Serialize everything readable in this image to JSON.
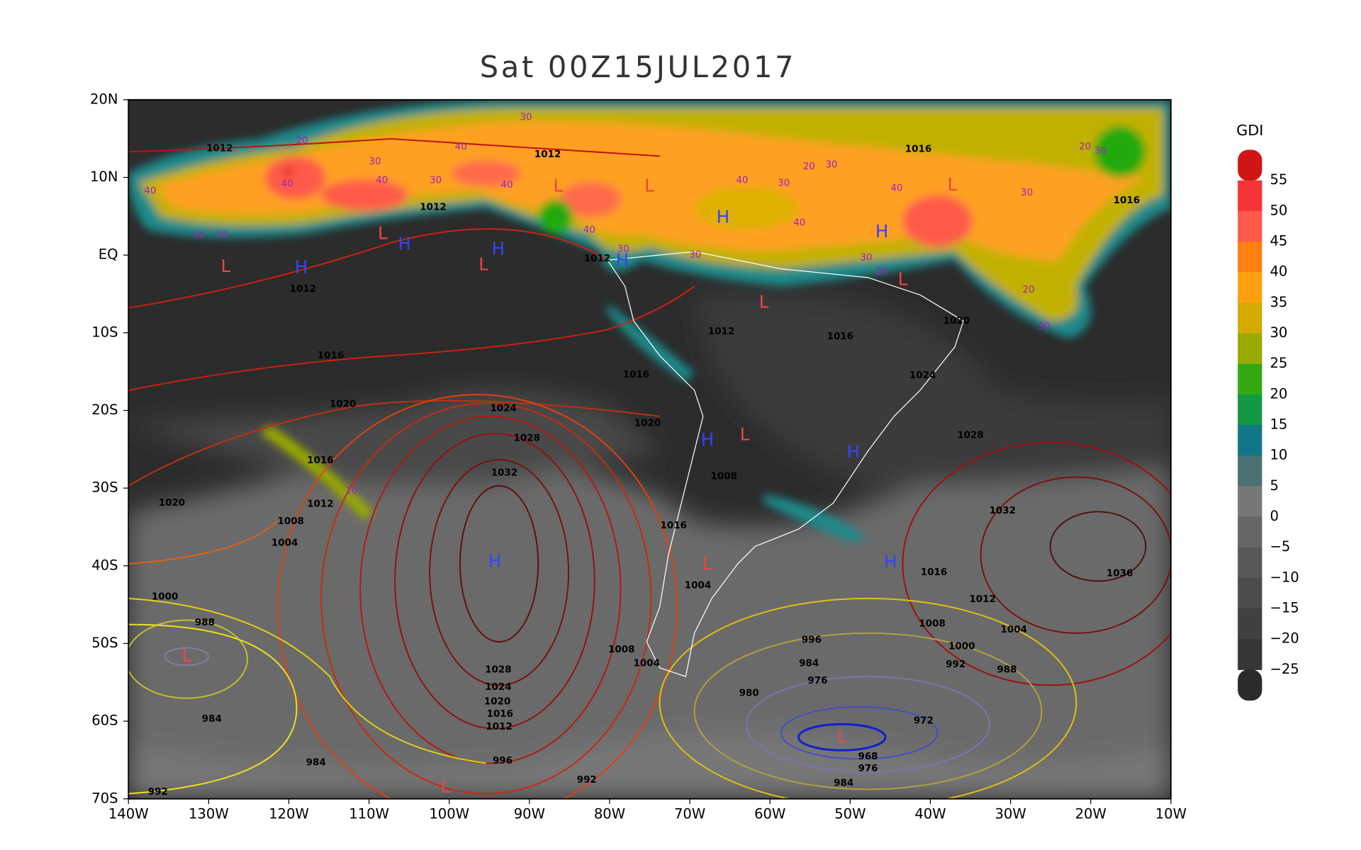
{
  "title": "Sat 00Z15JUL2017",
  "map": {
    "xlim": [
      -140,
      -10
    ],
    "ylim": [
      -70,
      20
    ],
    "xticks": [
      {
        "value": -140,
        "label": "140W"
      },
      {
        "value": -130,
        "label": "130W"
      },
      {
        "value": -120,
        "label": "120W"
      },
      {
        "value": -110,
        "label": "110W"
      },
      {
        "value": -100,
        "label": "100W"
      },
      {
        "value": -90,
        "label": "90W"
      },
      {
        "value": -80,
        "label": "80W"
      },
      {
        "value": -70,
        "label": "70W"
      },
      {
        "value": -60,
        "label": "60W"
      },
      {
        "value": -50,
        "label": "50W"
      },
      {
        "value": -40,
        "label": "40W"
      },
      {
        "value": -30,
        "label": "30W"
      },
      {
        "value": -20,
        "label": "20W"
      },
      {
        "value": -10,
        "label": "10W"
      }
    ],
    "yticks": [
      {
        "value": 20,
        "label": "20N"
      },
      {
        "value": 10,
        "label": "10N"
      },
      {
        "value": 0,
        "label": "EQ"
      },
      {
        "value": -10,
        "label": "10S"
      },
      {
        "value": -20,
        "label": "20S"
      },
      {
        "value": -30,
        "label": "30S"
      },
      {
        "value": -40,
        "label": "40S"
      },
      {
        "value": -50,
        "label": "50S"
      },
      {
        "value": -60,
        "label": "60S"
      },
      {
        "value": -70,
        "label": "70S"
      }
    ]
  },
  "colorbar": {
    "title": "GDI",
    "ticks": [
      55,
      50,
      45,
      40,
      35,
      30,
      25,
      20,
      15,
      10,
      5,
      0,
      {
        "value": -5,
        "label": "−5"
      },
      {
        "value": -10,
        "label": "−10"
      },
      {
        "value": -15,
        "label": "−15"
      },
      {
        "value": -20,
        "label": "−20"
      },
      {
        "value": -25,
        "label": "−25"
      }
    ],
    "colors": [
      "#d01515",
      "#f53535",
      "#ff5a4a",
      "#ff7f10",
      "#ffa010",
      "#d4aa00",
      "#9aaa00",
      "#33aa11",
      "#119944",
      "#117788",
      "#4a7272",
      "#777777",
      "#666666",
      "#585858",
      "#4c4c4c",
      "#414141",
      "#363636",
      "#2b2b2b"
    ]
  },
  "isobar_labels": [
    1012,
    1012,
    1012,
    1012,
    1012,
    1016,
    1016,
    1016,
    1012,
    1016,
    1020,
    1016,
    1024,
    1020,
    1024,
    1028,
    1020,
    1016,
    1032,
    1008,
    1028,
    1020,
    1012,
    1008,
    1004,
    1016,
    1032,
    1004,
    1036,
    1016,
    1000,
    1012,
    1008,
    1004,
    988,
    1000,
    996,
    1008,
    1004,
    992,
    988,
    984,
    1028,
    976,
    1024,
    1020,
    980,
    1016,
    1012,
    984,
    972,
    968,
    976,
    996,
    984,
    992,
    984,
    992
  ],
  "gdi_labels": [
    40,
    30,
    40,
    30,
    40,
    40,
    30,
    20,
    20,
    30,
    40,
    40,
    30,
    30,
    40,
    30,
    20,
    30,
    40,
    40,
    30,
    20,
    30,
    20,
    30,
    20,
    30,
    20
  ],
  "centers": [
    "H",
    "H",
    "H",
    "H",
    "H",
    "H",
    "H",
    "H",
    "H",
    "H",
    "L",
    "L",
    "L",
    "L",
    "L",
    "L",
    "L",
    "L",
    "L",
    "L",
    "L",
    "L",
    "L"
  ]
}
